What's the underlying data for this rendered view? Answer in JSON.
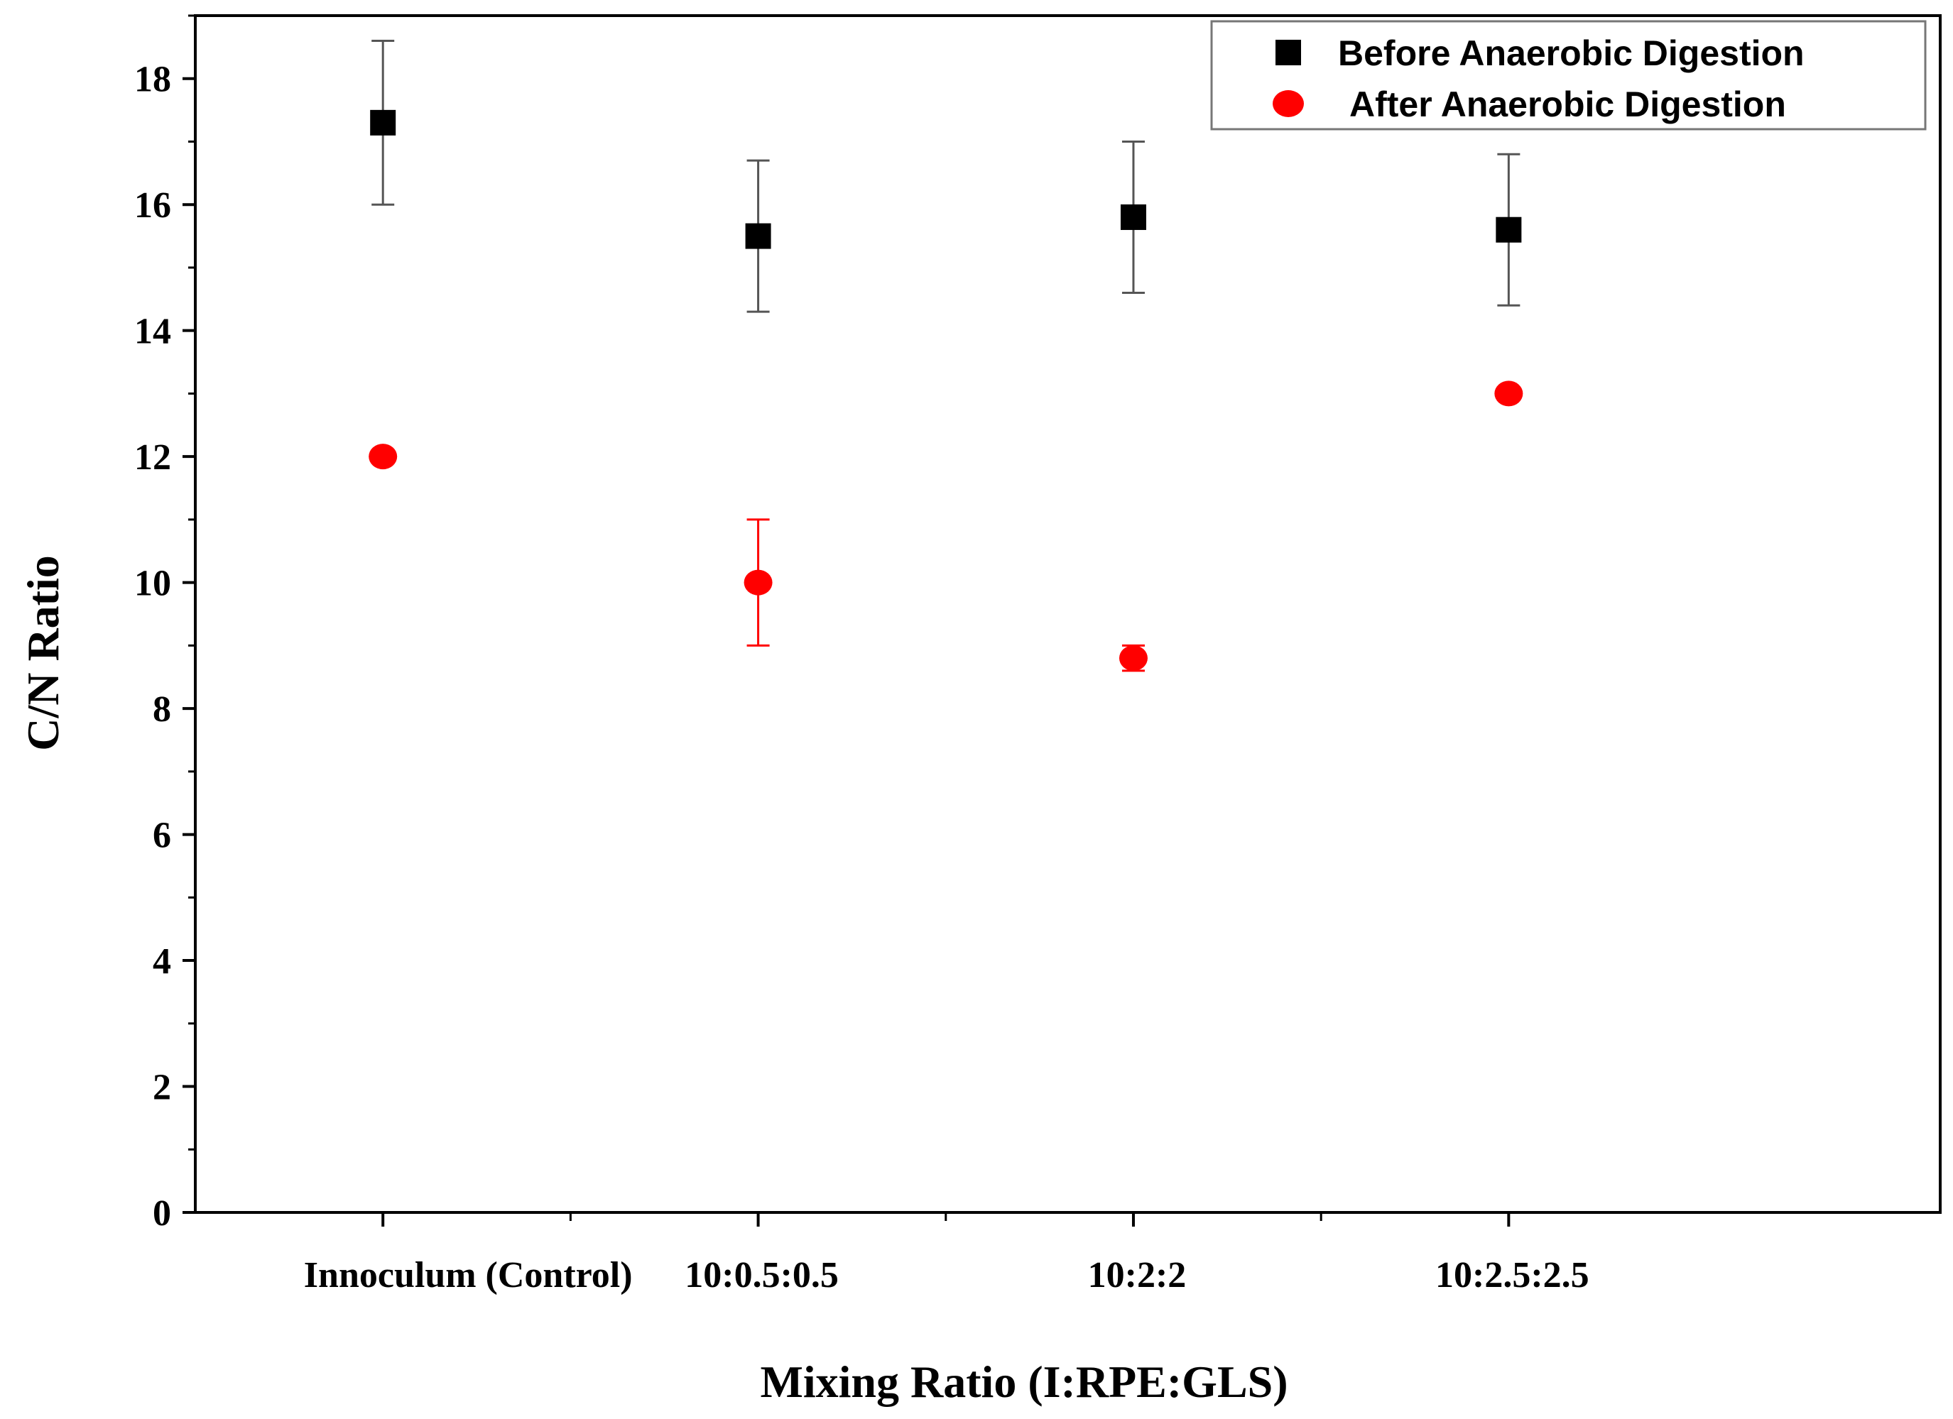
{
  "chart_data": {
    "type": "scatter",
    "title": "",
    "xlabel": "Mixing Ratio (I:RPE:GLS)",
    "ylabel": "C/N Ratio",
    "categories": [
      "Innoculum (Control)",
      "10:0.5:0.5",
      "10:2:2",
      "10:2.5:2.5"
    ],
    "ylim": [
      0,
      19
    ],
    "yticks": [
      "0",
      "2",
      "4",
      "6",
      "8",
      "10",
      "12",
      "14",
      "16",
      "18"
    ],
    "ytick_values": [
      0,
      2,
      4,
      6,
      8,
      10,
      12,
      14,
      16,
      18
    ],
    "legend_position": "top-right",
    "series": [
      {
        "name": "Before Anaerobic Digestion",
        "marker": "square",
        "color": "#000000",
        "error_color": "#555555",
        "values": [
          17.3,
          15.5,
          15.8,
          15.6
        ],
        "errors": [
          1.3,
          1.2,
          1.2,
          1.2
        ]
      },
      {
        "name": "After Anaerobic Digestion",
        "marker": "circle",
        "color": "#ff0000",
        "error_color": "#ff0000",
        "values": [
          12.0,
          10.0,
          8.8,
          13.0
        ],
        "errors": [
          0.0,
          1.0,
          0.2,
          0.0
        ]
      }
    ]
  }
}
